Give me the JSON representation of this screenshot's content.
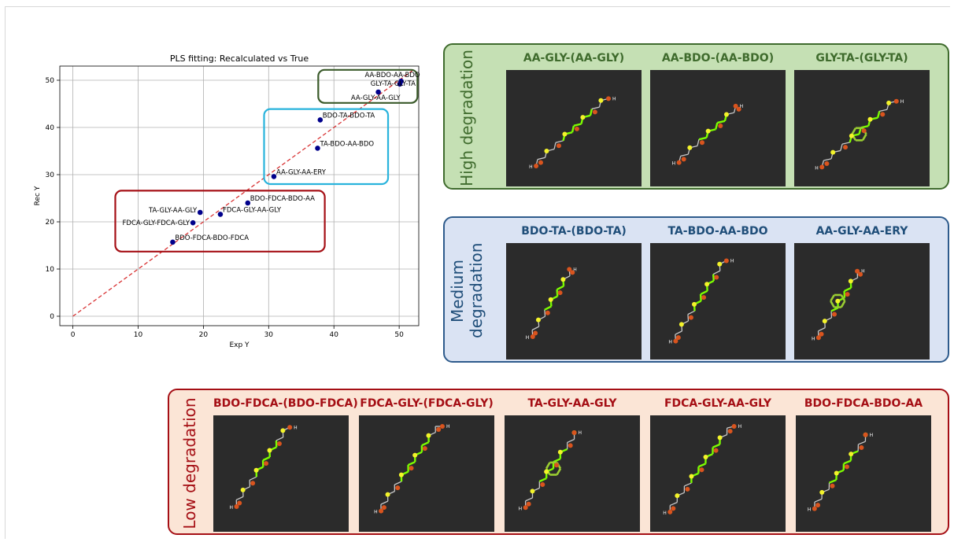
{
  "chart_data": {
    "type": "scatter",
    "title": "PLS fitting: Recalculated vs True",
    "xlabel": "Exp Y",
    "ylabel": "Rec Y",
    "xlim": [
      -2,
      53
    ],
    "ylim": [
      -2,
      53
    ],
    "xticks": [
      0,
      10,
      20,
      30,
      40,
      50
    ],
    "yticks": [
      0,
      10,
      20,
      30,
      40,
      50
    ],
    "grid": true,
    "point_color": "#00008b",
    "fit_line": {
      "style": "dashed",
      "color": "#d62728",
      "x": [
        0,
        52
      ],
      "y": [
        0,
        52
      ]
    },
    "points": [
      {
        "label": "AA-BDO-AA-BDO",
        "x": 50.3,
        "y": 49.8
      },
      {
        "label": "GLY-TA-GLY-TA",
        "x": 50.1,
        "y": 49.2
      },
      {
        "label": "AA-GLY-AA-GLY",
        "x": 46.8,
        "y": 47.5
      },
      {
        "label": "BDO-TA-BDO-TA",
        "x": 37.9,
        "y": 41.6
      },
      {
        "label": "TA-BDO-AA-BDO",
        "x": 37.5,
        "y": 35.6
      },
      {
        "label": "AA-GLY-AA-ERY",
        "x": 30.8,
        "y": 29.6
      },
      {
        "label": "BDO-FDCA-BDO-AA",
        "x": 26.8,
        "y": 24.0
      },
      {
        "label": "FDCA-GLY-AA-GLY",
        "x": 22.6,
        "y": 21.6
      },
      {
        "label": "TA-GLY-AA-GLY",
        "x": 19.5,
        "y": 22.0
      },
      {
        "label": "FDCA-GLY-FDCA-GLY",
        "x": 18.4,
        "y": 19.8
      },
      {
        "label": "BDO-FDCA-BDO-FDCA",
        "x": 15.3,
        "y": 15.7
      }
    ],
    "groups": [
      {
        "name": "high",
        "color": "#3a5a2a",
        "x": [
          37.6,
          52.8
        ],
        "y": [
          45.2,
          52.2
        ]
      },
      {
        "name": "medium",
        "color": "#29b3dc",
        "x": [
          29.3,
          48.3
        ],
        "y": [
          28.0,
          43.9
        ]
      },
      {
        "name": "low",
        "color": "#a50f15",
        "x": [
          6.5,
          38.6
        ],
        "y": [
          13.7,
          26.6
        ]
      }
    ]
  },
  "panels": {
    "high": {
      "title": "High degradation",
      "bg": "#c5e0b4",
      "border": "#3f6b2d",
      "text": "#3f6b2d",
      "molecules": [
        "AA-GLY-(AA-GLY)",
        "AA-BDO-(AA-BDO)",
        "GLY-TA-(GLY-TA)"
      ]
    },
    "medium": {
      "title": "Medium degradation",
      "bg": "#dae3f3",
      "border": "#2e5b8c",
      "text": "#1f4e79",
      "molecules": [
        "BDO-TA-(BDO-TA)",
        "TA-BDO-AA-BDO",
        "AA-GLY-AA-ERY"
      ]
    },
    "low": {
      "title": "Low degradation",
      "bg": "#fbe5d6",
      "border": "#a50f15",
      "text": "#a50f15",
      "molecules": [
        "BDO-FDCA-(BDO-FDCA)",
        "FDCA-GLY-(FDCA-GLY)",
        "TA-GLY-AA-GLY",
        "FDCA-GLY-AA-GLY",
        "BDO-FDCA-BDO-AA"
      ]
    }
  },
  "molecule_atom_text": "H"
}
